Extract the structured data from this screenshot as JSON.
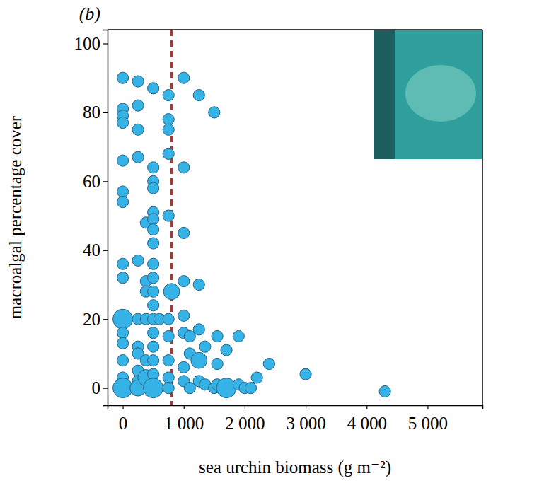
{
  "chart_data": {
    "type": "scatter",
    "title": "(b)",
    "x_label": "sea urchin biomass (g m⁻²)",
    "y_label": "macroalgal percentage cover",
    "x": [
      0,
      0,
      0,
      0,
      0,
      0,
      0,
      0,
      0,
      0,
      0,
      0,
      0,
      0,
      0,
      250,
      250,
      250,
      250,
      250,
      250,
      250,
      250,
      250,
      250,
      250,
      380,
      380,
      380,
      380,
      380,
      380,
      500,
      500,
      500,
      500,
      500,
      500,
      500,
      500,
      500,
      500,
      500,
      500,
      500,
      500,
      500,
      500,
      500,
      500,
      600,
      750,
      750,
      750,
      750,
      750,
      750,
      750,
      750,
      750,
      750,
      800,
      1000,
      1000,
      1000,
      1000,
      1000,
      1000,
      1000,
      1000,
      1100,
      1100,
      1100,
      1250,
      1250,
      1250,
      1250,
      1250,
      1350,
      1350,
      1500,
      1500,
      1550,
      1550,
      1550,
      1700,
      1700,
      1900,
      1900,
      2000,
      2100,
      2200,
      2400,
      3000,
      4300
    ],
    "values": [
      90,
      81,
      79,
      77,
      66,
      57,
      54,
      36,
      32,
      20,
      16,
      13,
      8,
      3,
      0,
      89,
      82,
      75,
      67,
      37,
      20,
      12,
      10,
      5,
      2,
      0,
      48,
      31,
      28,
      20,
      8,
      3,
      87,
      64,
      60,
      58,
      51,
      49,
      46,
      42,
      36,
      32,
      28,
      24,
      20,
      16,
      12,
      8,
      4,
      0,
      20,
      85,
      78,
      75,
      68,
      50,
      20,
      15,
      8,
      3,
      0,
      28,
      90,
      64,
      45,
      31,
      21,
      16,
      6,
      2,
      15,
      10,
      0,
      85,
      30,
      17,
      8,
      2,
      12,
      1,
      80,
      0,
      15,
      7,
      1,
      11,
      0,
      15,
      1,
      0,
      0,
      3,
      7,
      4,
      -1
    ],
    "sizes": [
      1,
      1,
      1,
      1,
      1,
      1,
      1,
      1,
      1,
      3,
      1,
      1,
      1,
      1,
      3,
      1,
      1,
      1,
      1,
      1,
      1,
      1,
      1,
      1,
      1,
      2,
      1,
      1,
      1,
      1,
      1,
      2,
      1,
      1,
      1,
      1,
      1,
      1,
      1,
      1,
      1,
      1,
      1,
      1,
      1,
      1,
      1,
      1,
      1,
      3,
      1,
      1,
      1,
      1,
      1,
      1,
      1,
      1,
      1,
      1,
      1,
      2,
      1,
      1,
      1,
      1,
      1,
      1,
      1,
      1,
      1,
      1,
      1,
      1,
      1,
      1,
      2,
      1,
      1,
      1,
      1,
      1,
      1,
      1,
      1,
      1,
      3,
      1,
      1,
      1,
      1,
      1,
      1,
      1,
      1
    ],
    "color": "#35b3e6",
    "marker": "circle",
    "threshold_x": 800,
    "threshold_color": "#b5332e",
    "threshold_line_style": "dashed",
    "xlim": [
      -250,
      5900
    ],
    "xticks": [
      0,
      {
        "value": 1000,
        "label": "1 000"
      },
      {
        "value": 2000,
        "label": "2 000"
      },
      {
        "value": 3000,
        "label": "3 000"
      },
      {
        "value": 4000,
        "label": "4 000"
      },
      {
        "value": 5000,
        "label": "5 000"
      }
    ],
    "ylim": [
      -5,
      104
    ],
    "yticks": [
      0,
      20,
      40,
      60,
      80,
      100
    ],
    "grid": false
  }
}
